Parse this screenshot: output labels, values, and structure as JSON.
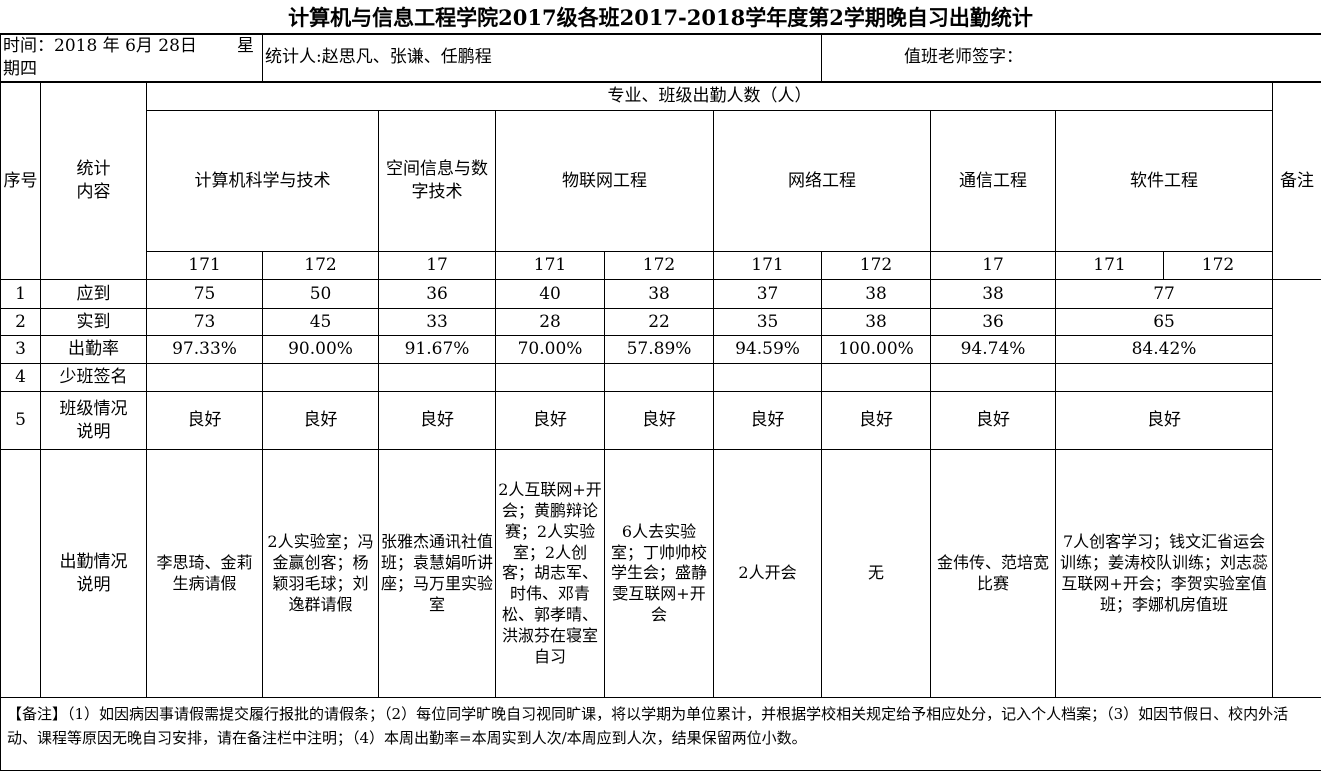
{
  "title": "计算机与信息工程学院2017级各班2017-2018学年度第2学期晚自习出勤统计",
  "info": {
    "date": "时间：2018 年 6月 28日",
    "weekday": "星期四",
    "counters": "统计人:赵思凡、张谦、任鹏程",
    "teacher_sign": "值班老师签字："
  },
  "headers": {
    "index": "序号",
    "content": "统计内容",
    "group": "专业、班级出勤人数（人）",
    "remark": "备注",
    "majors": [
      "计算机科学与技术",
      "空间信息与数字技术",
      "物联网工程",
      "网络工程",
      "通信工程",
      "软件工程"
    ],
    "classes": [
      "171",
      "172",
      "17",
      "171",
      "172",
      "171",
      "172",
      "17",
      "171",
      "172"
    ]
  },
  "rows": [
    {
      "no": "1",
      "label": "应到",
      "values": [
        "75",
        "50",
        "36",
        "40",
        "38",
        "37",
        "38",
        "38",
        "77"
      ]
    },
    {
      "no": "2",
      "label": "实到",
      "values": [
        "73",
        "45",
        "33",
        "28",
        "22",
        "35",
        "38",
        "36",
        "65"
      ]
    },
    {
      "no": "3",
      "label": "出勤率",
      "values": [
        "97.33%",
        "90.00%",
        "91.67%",
        "70.00%",
        "57.89%",
        "94.59%",
        "100.00%",
        "94.74%",
        "84.42%"
      ]
    },
    {
      "no": "4",
      "label": "少班签名",
      "values": [
        "",
        "",
        "",
        "",
        "",
        "",
        "",
        "",
        ""
      ]
    },
    {
      "no": "5",
      "label": "班级情况说明",
      "values": [
        "良好",
        "良好",
        "良好",
        "良好",
        "良好",
        "良好",
        "良好",
        "良好",
        "良好"
      ]
    },
    {
      "no": "",
      "label": "出勤情况说明",
      "values": [
        "李思琦、金莉生病请假",
        "2人实验室；冯金赢创客；杨颖羽毛球；刘逸群请假",
        "张雅杰通讯社值班；袁慧娟听讲座；马万里实验室",
        "2人互联网+开会；黄鹏辩论赛；2人实验室；2人创客；胡志军、时伟、邓青松、郭孝晴、洪淑芬在寝室自习",
        "6人去实验室；丁帅帅校学生会；盛静雯互联网+开会",
        "2人开会",
        "无",
        "金伟传、范培宽比赛",
        "7人创客学习；钱文汇省运会训练；姜涛校队训练；刘志蕊互联网+开会；李贺实验室值班；李娜机房值班"
      ]
    }
  ],
  "footer": "【备注】（1）如因病因事请假需提交履行报批的请假条；（2）每位同学旷晚自习视同旷课，将以学期为单位累计，并根据学校相关规定给予相应处分，记入个人档案；（3）如因节假日、校内外活动、课程等原因无晚自习安排，请在备注栏中注明；（4）本周出勤率=本周实到人次/本周应到人次，结果保留两位小数。"
}
